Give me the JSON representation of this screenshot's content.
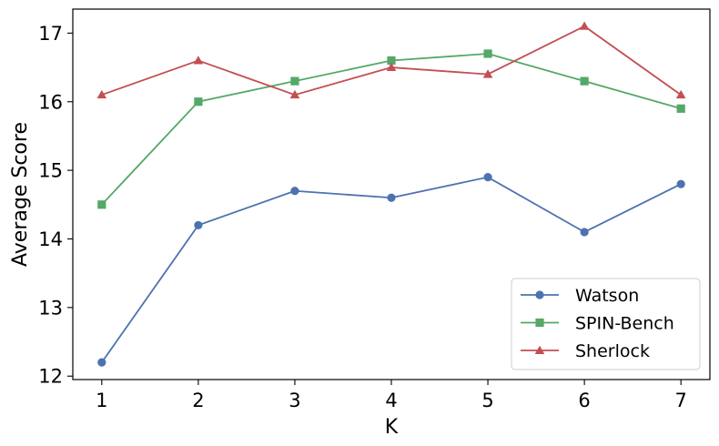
{
  "chart_data": {
    "type": "line",
    "title": "",
    "xlabel": "K",
    "ylabel": "Average Score",
    "x": [
      1,
      2,
      3,
      4,
      5,
      6,
      7
    ],
    "xlim": [
      0.7,
      7.3
    ],
    "ylim": [
      11.95,
      17.35
    ],
    "xticks": [
      1,
      2,
      3,
      4,
      5,
      6,
      7
    ],
    "yticks": [
      12,
      13,
      14,
      15,
      16,
      17
    ],
    "grid": false,
    "legend_position": "bottom-right",
    "series": [
      {
        "name": "Watson",
        "color": "#4c72b0",
        "marker": "circle",
        "values": [
          12.2,
          14.2,
          14.7,
          14.6,
          14.9,
          14.1,
          14.8
        ]
      },
      {
        "name": "SPIN-Bench",
        "color": "#55a868",
        "marker": "square",
        "values": [
          14.5,
          16.0,
          16.3,
          16.6,
          16.7,
          16.3,
          15.9
        ]
      },
      {
        "name": "Sherlock",
        "color": "#c44e52",
        "marker": "triangle",
        "values": [
          16.1,
          16.6,
          16.1,
          16.5,
          16.4,
          17.1,
          16.1
        ]
      }
    ]
  }
}
